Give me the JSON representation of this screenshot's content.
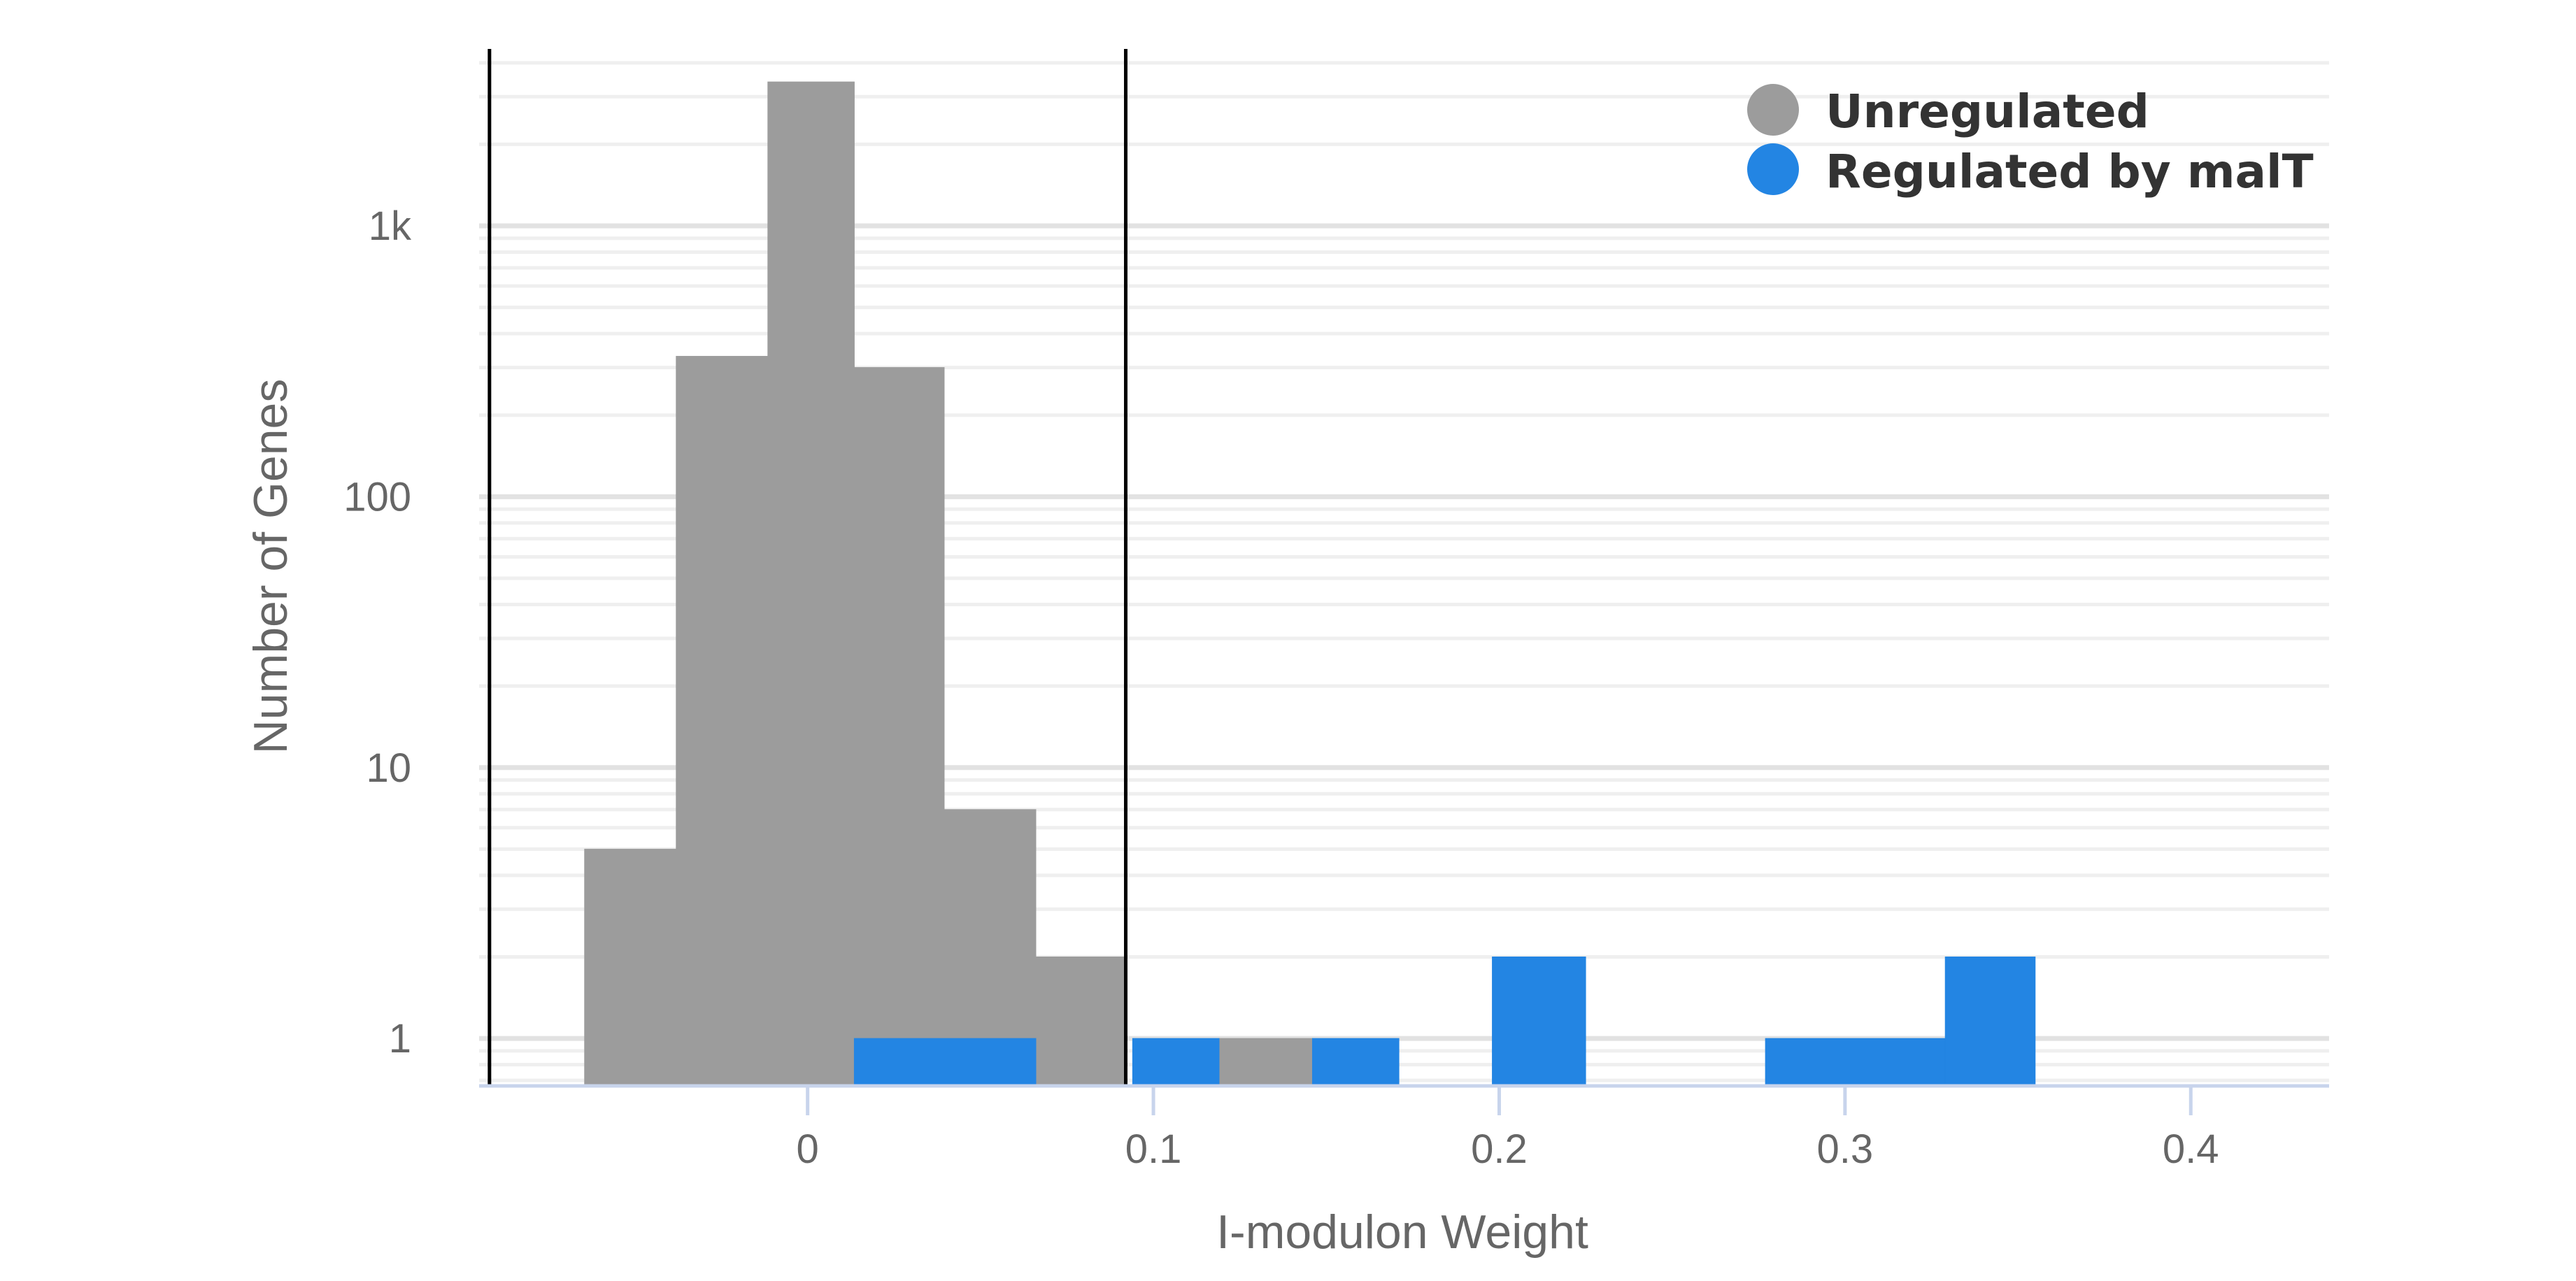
{
  "chart_data": {
    "type": "bar",
    "title": "",
    "xlabel": "I-modulon Weight",
    "ylabel": "Number of Genes",
    "y_scale": "log",
    "xlim": [
      -0.095,
      0.44
    ],
    "ylim": [
      0.68,
      4500
    ],
    "grid": true,
    "legend_position": "top-right",
    "x_ticks": [
      {
        "value": 0,
        "label": "0"
      },
      {
        "value": 0.1,
        "label": "0.1"
      },
      {
        "value": 0.2,
        "label": "0.2"
      },
      {
        "value": 0.3,
        "label": "0.3"
      },
      {
        "value": 0.4,
        "label": "0.4"
      }
    ],
    "y_ticks": [
      {
        "value": 1,
        "label": "1"
      },
      {
        "value": 10,
        "label": "10"
      },
      {
        "value": 100,
        "label": "100"
      },
      {
        "value": 1000,
        "label": "1k"
      }
    ],
    "thresholds": [
      -0.092,
      0.092
    ],
    "series": [
      {
        "name": "Unregulated",
        "color": "#9c9c9c",
        "bars": [
          {
            "x0": -0.0645,
            "x1": -0.038,
            "count": 5
          },
          {
            "x0": -0.038,
            "x1": -0.0115,
            "count": 330
          },
          {
            "x0": -0.0115,
            "x1": 0.0135,
            "count": 3400
          },
          {
            "x0": 0.0135,
            "x1": 0.0395,
            "count": 300
          },
          {
            "x0": 0.0395,
            "x1": 0.066,
            "count": 7
          },
          {
            "x0": 0.066,
            "x1": 0.092,
            "count": 2
          },
          {
            "x0": 0.119,
            "x1": 0.146,
            "count": 1
          }
        ]
      },
      {
        "name": "Regulated by malT",
        "color": "#2385e3",
        "bars": [
          {
            "x0": 0.0135,
            "x1": 0.066,
            "count": 1
          },
          {
            "x0": 0.094,
            "x1": 0.119,
            "count": 1
          },
          {
            "x0": 0.146,
            "x1": 0.171,
            "count": 1
          },
          {
            "x0": 0.198,
            "x1": 0.225,
            "count": 2
          },
          {
            "x0": 0.277,
            "x1": 0.329,
            "count": 1
          },
          {
            "x0": 0.329,
            "x1": 0.355,
            "count": 2
          }
        ]
      }
    ]
  }
}
